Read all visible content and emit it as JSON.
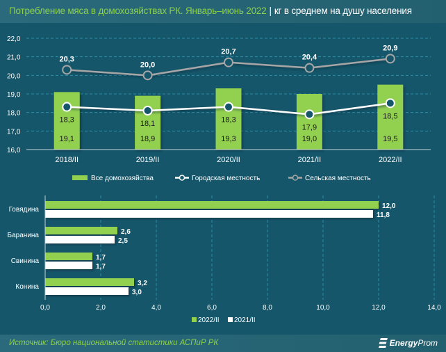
{
  "header": {
    "title_main": "Потребление мяса в домохозяйствах РК. Январь–июнь 2022",
    "separator": "|",
    "title_unit": "кг в среднем на душу населения"
  },
  "footer": {
    "source": "Источник: Бюро национальной статистики АСПиР РК",
    "logo_bold": "Energy",
    "logo_italic": "Prom"
  },
  "colors": {
    "background": "#15566a",
    "green": "#92d050",
    "white": "#ffffff",
    "gray": "#a6a6a6",
    "grid": "#2a8fa8"
  },
  "chart_data": [
    {
      "type": "bar+line",
      "title": "",
      "categories": [
        "2018/II",
        "2019/II",
        "2020/II",
        "2021/II",
        "2022/II"
      ],
      "series": [
        {
          "name": "Все домохозяйства",
          "kind": "bar",
          "values": [
            19.1,
            18.9,
            19.3,
            19.0,
            19.5
          ],
          "labels": [
            "19,1",
            "18,9",
            "19,3",
            "19,0",
            "19,5"
          ]
        },
        {
          "name": "Городская местность",
          "kind": "line",
          "values": [
            18.3,
            18.1,
            18.3,
            17.9,
            18.5
          ],
          "labels": [
            "18,3",
            "18,1",
            "18,3",
            "17,9",
            "18,5"
          ]
        },
        {
          "name": "Сельская местность",
          "kind": "line",
          "values": [
            20.3,
            20.0,
            20.7,
            20.4,
            20.9
          ],
          "labels": [
            "20,3",
            "20,0",
            "20,7",
            "20,4",
            "20,9"
          ]
        }
      ],
      "ylim": [
        16.0,
        22.0
      ],
      "yticks": [
        "16,0",
        "17,0",
        "18,0",
        "19,0",
        "20,0",
        "21,0",
        "22,0"
      ],
      "grid": true,
      "legend": "bottom"
    },
    {
      "type": "bar",
      "orientation": "horizontal",
      "categories": [
        "Говядина",
        "Баранина",
        "Свинина",
        "Конина"
      ],
      "series": [
        {
          "name": "2022/II",
          "values": [
            12.0,
            2.6,
            1.7,
            3.2
          ],
          "labels": [
            "12,0",
            "2,6",
            "1,7",
            "3,2"
          ]
        },
        {
          "name": "2021/II",
          "values": [
            11.8,
            2.5,
            1.7,
            3.0
          ],
          "labels": [
            "11,8",
            "2,5",
            "1,7",
            "3,0"
          ]
        }
      ],
      "xlim": [
        0,
        14
      ],
      "xticks": [
        "0,0",
        "2,0",
        "4,0",
        "6,0",
        "8,0",
        "10,0",
        "12,0",
        "14,0"
      ],
      "grid": true,
      "legend": "bottom"
    }
  ]
}
